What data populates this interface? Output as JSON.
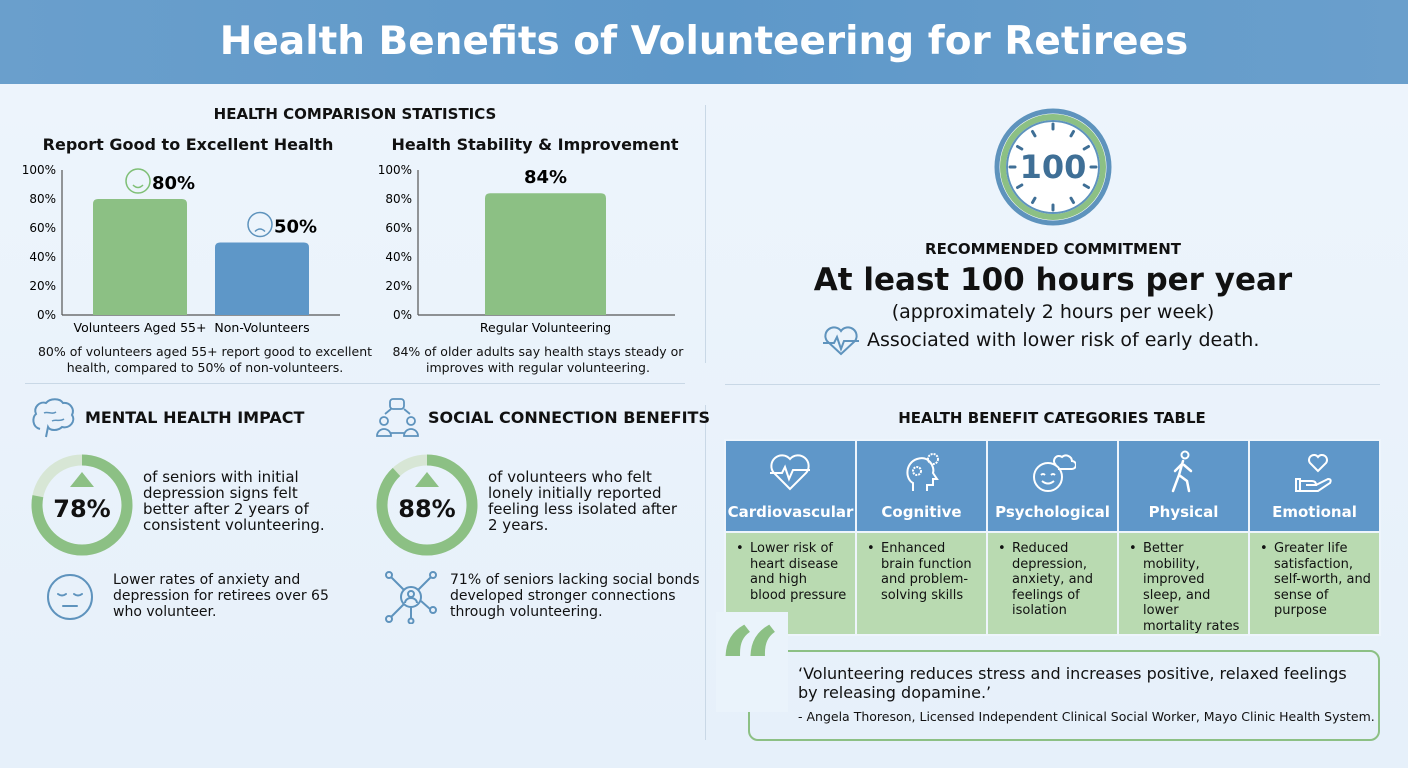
{
  "title": "Health Benefits of Volunteering for Retirees",
  "comparison": {
    "heading": "HEALTH COMPARISON STATISTICS",
    "caption1": "80% of volunteers aged 55+ report good to excellent health, compared to 50% of non-volunteers.",
    "caption2": "84% of older adults say health stays steady or improves with regular volunteering."
  },
  "chart_data": [
    {
      "type": "bar",
      "title": "Report Good to Excellent Health",
      "categories": [
        "Volunteers Aged 55+",
        "Non-Volunteers"
      ],
      "values": [
        80,
        50
      ],
      "data_labels": [
        "80%",
        "50%"
      ],
      "colors": [
        "#8cc084",
        "#5e97c8"
      ],
      "ylim": [
        0,
        100
      ],
      "yticks": [
        "0%",
        "20%",
        "40%",
        "60%",
        "80%",
        "100%"
      ],
      "grid": false
    },
    {
      "type": "bar",
      "title": "Health Stability & Improvement",
      "categories": [
        "Regular Volunteering"
      ],
      "values": [
        84
      ],
      "data_labels": [
        "84%"
      ],
      "colors": [
        "#8cc084"
      ],
      "ylim": [
        0,
        100
      ],
      "yticks": [
        "0%",
        "20%",
        "40%",
        "60%",
        "80%",
        "100%"
      ],
      "grid": false
    }
  ],
  "commitment": {
    "clock_value": "100",
    "label": "RECOMMENDED COMMITMENT",
    "headline": "At least 100 hours per year",
    "sub": "(approximately 2 hours per week)",
    "note": "Associated with lower risk of early death.",
    "icon": "heartbeat-icon"
  },
  "mental": {
    "heading": "MENTAL HEALTH IMPACT",
    "percent": 78,
    "percent_label": "78%",
    "text": "of seniors with initial depression signs felt better after 2 years of consistent volunteering.",
    "note": "Lower rates of anxiety and depression for retirees over 65 who volunteer."
  },
  "social": {
    "heading": "SOCIAL CONNECTION BENEFITS",
    "percent": 88,
    "percent_label": "88%",
    "text": "of volunteers who felt lonely initially reported feeling less isolated after 2 years.",
    "note": "71% of seniors lacking social bonds developed stronger connections through volunteering."
  },
  "table": {
    "heading": "HEALTH BENEFIT CATEGORIES TABLE",
    "columns": [
      {
        "label": "Cardiovascular",
        "icon": "heart-pulse-icon",
        "text": "Lower risk of heart disease and high blood pressure"
      },
      {
        "label": "Cognitive",
        "icon": "head-gears-icon",
        "text": "Enhanced brain function and problem-solving skills"
      },
      {
        "label": "Psychological",
        "icon": "smile-cloud-icon",
        "text": "Reduced depression, anxiety, and feelings of isolation"
      },
      {
        "label": "Physical",
        "icon": "walking-person-icon",
        "text": "Better mobility, improved sleep, and lower mortality rates"
      },
      {
        "label": "Emotional",
        "icon": "hand-heart-icon",
        "text": "Greater life satisfaction, self-worth, and sense of purpose"
      }
    ]
  },
  "quote": {
    "text": "‘Volunteering reduces stress and increases positive, relaxed feelings by releasing dopamine.’",
    "author": "- Angela Thoreson, Licensed Independent Clinical Social Worker, Mayo Clinic Health System."
  },
  "colors": {
    "header": "#6a9fcc",
    "green": "#8cc084",
    "blue": "#5e97c8",
    "table_body": "#b9dab1"
  }
}
